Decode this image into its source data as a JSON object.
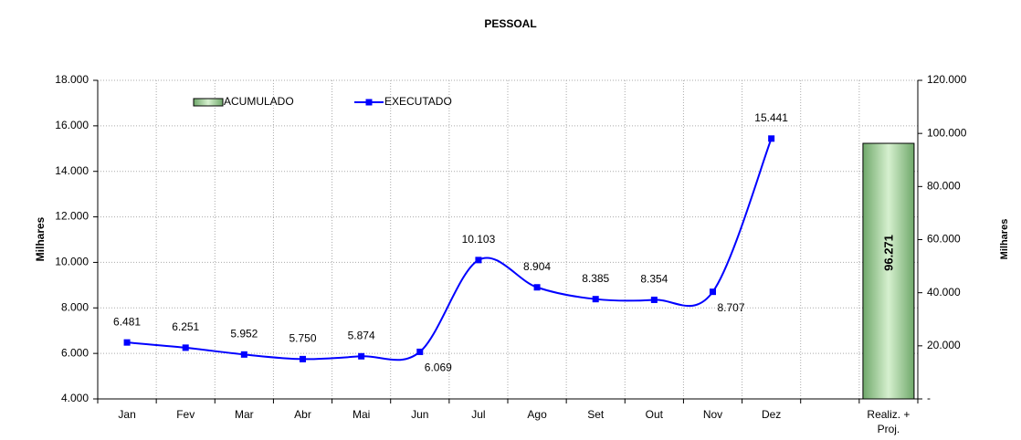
{
  "chart_data": {
    "type": "line",
    "title": "PESSOAL",
    "y_label": "Milhares",
    "y2_label": "Milhares",
    "categories": [
      "Jan",
      "Fev",
      "Mar",
      "Abr",
      "Mai",
      "Jun",
      "Jul",
      "Ago",
      "Set",
      "Out",
      "Nov",
      "Dez",
      null,
      "Realiz. + Proj."
    ],
    "series": [
      {
        "name": "ACUMULADO",
        "type": "bar",
        "axis": "y2",
        "color": "#b8e0b0",
        "values": [
          null,
          null,
          null,
          null,
          null,
          null,
          null,
          null,
          null,
          null,
          null,
          null,
          null,
          96271
        ],
        "value_labels": [
          null,
          null,
          null,
          null,
          null,
          null,
          null,
          null,
          null,
          null,
          null,
          null,
          null,
          "96.271"
        ]
      },
      {
        "name": "EXECUTADO",
        "type": "line",
        "color": "#0000ff",
        "values": [
          6481,
          6251,
          5952,
          5750,
          5874,
          6069,
          10103,
          8904,
          8385,
          8354,
          8707,
          15441,
          null,
          null
        ],
        "value_labels": [
          "6.481",
          "6.251",
          "5.952",
          "5.750",
          "5.874",
          "6.069",
          "10.103",
          "8.904",
          "8.385",
          "8.354",
          "8.707",
          "15.441",
          null,
          null
        ]
      }
    ],
    "ylim": [
      4000,
      18000
    ],
    "yticks": [
      {
        "value": 4000,
        "label": "4.000"
      },
      {
        "value": 6000,
        "label": "6.000"
      },
      {
        "value": 8000,
        "label": "8.000"
      },
      {
        "value": 10000,
        "label": "10.000"
      },
      {
        "value": 12000,
        "label": "12.000"
      },
      {
        "value": 14000,
        "label": "14.000"
      },
      {
        "value": 16000,
        "label": "16.000"
      },
      {
        "value": 18000,
        "label": "18.000"
      }
    ],
    "y2lim": [
      0,
      120000
    ],
    "y2ticks": [
      {
        "value": 0,
        "label": "-"
      },
      {
        "value": 20000,
        "label": "20.000"
      },
      {
        "value": 40000,
        "label": "40.000"
      },
      {
        "value": 60000,
        "label": "60.000"
      },
      {
        "value": 80000,
        "label": "80.000"
      },
      {
        "value": 100000,
        "label": "100.000"
      },
      {
        "value": 120000,
        "label": "120.000"
      }
    ],
    "grid": true,
    "legend": "top-left"
  }
}
